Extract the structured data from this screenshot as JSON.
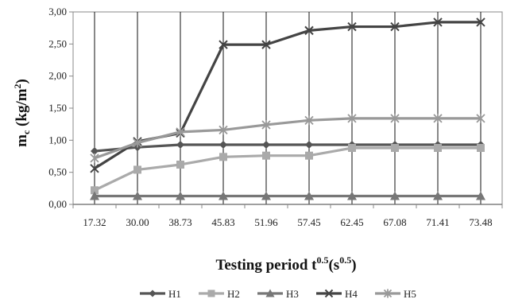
{
  "chart_data": {
    "type": "line",
    "xlabel": "Testing period t",
    "xlabel_sup1": "0.5",
    "xlabel_mid": "(s",
    "xlabel_sup2": "0.5",
    "xlabel_end": ")",
    "ylabel": "m",
    "ylabel_sub": "c",
    "ylabel_unit": " (kg/m",
    "ylabel_sup": "2",
    "ylabel_end": ")",
    "categories": [
      "17.32",
      "30.00",
      "38.73",
      "45.83",
      "51.96",
      "57.45",
      "62.45",
      "67.08",
      "71.41",
      "73.48"
    ],
    "y_ticks": [
      "0,00",
      "0,50",
      "1,00",
      "1,50",
      "2,00",
      "2,50",
      "3,00"
    ],
    "ylim": [
      0,
      3
    ],
    "y_step": 0.5,
    "grid": "vertical-lines-at-categories",
    "legend_position": "bottom",
    "series": [
      {
        "name": "H1",
        "marker": "diamond",
        "color": "#555555",
        "values": [
          0.83,
          0.89,
          0.93,
          0.93,
          0.93,
          0.93,
          0.93,
          0.93,
          0.93,
          0.93
        ]
      },
      {
        "name": "H2",
        "marker": "square",
        "color": "#aaaaaa",
        "values": [
          0.22,
          0.54,
          0.62,
          0.74,
          0.76,
          0.76,
          0.88,
          0.88,
          0.88,
          0.88
        ]
      },
      {
        "name": "H3",
        "marker": "triangle",
        "color": "#777777",
        "values": [
          0.13,
          0.13,
          0.13,
          0.13,
          0.13,
          0.13,
          0.13,
          0.13,
          0.13,
          0.13
        ]
      },
      {
        "name": "H4",
        "marker": "x",
        "color": "#444444",
        "values": [
          0.56,
          0.98,
          1.11,
          2.49,
          2.49,
          2.71,
          2.77,
          2.77,
          2.84,
          2.84
        ]
      },
      {
        "name": "H5",
        "marker": "star",
        "color": "#999999",
        "values": [
          0.72,
          0.96,
          1.13,
          1.16,
          1.24,
          1.31,
          1.34,
          1.34,
          1.34,
          1.34
        ]
      }
    ]
  }
}
